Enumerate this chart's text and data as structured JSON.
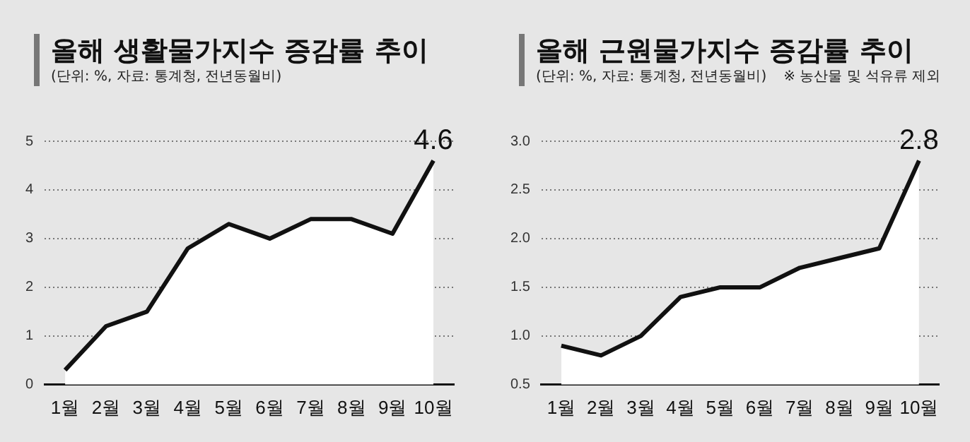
{
  "chart_data": [
    {
      "type": "area",
      "title": "올해 생활물가지수 증감률 추이",
      "subtitle": "(단위: %, 자료: 통계청, 전년동월비)",
      "categories": [
        "1월",
        "2월",
        "3월",
        "4월",
        "5월",
        "6월",
        "7월",
        "8월",
        "9월",
        "10월"
      ],
      "series": [
        {
          "color": "#111111",
          "values": [
            0.3,
            1.2,
            1.5,
            2.8,
            3.3,
            3.0,
            3.4,
            3.4,
            3.1,
            4.6
          ],
          "value_labels": [
            null,
            null,
            null,
            null,
            null,
            null,
            null,
            null,
            null,
            "4.6"
          ]
        }
      ],
      "ylim": [
        0,
        5
      ],
      "yticks": [
        0,
        1,
        2,
        3,
        4,
        5
      ],
      "grid": "y",
      "marker": "none"
    },
    {
      "type": "area",
      "title": "올해 근원물가지수 증감률 추이",
      "subtitle": "(단위: %, 자료: 통계청, 전년동월비)",
      "annotations": [
        "※ 농산물 및 석유류 제외"
      ],
      "categories": [
        "1월",
        "2월",
        "3월",
        "4월",
        "5월",
        "6월",
        "7월",
        "8월",
        "9월",
        "10월"
      ],
      "series": [
        {
          "color": "#111111",
          "values": [
            0.9,
            0.8,
            1.0,
            1.4,
            1.5,
            1.5,
            1.7,
            1.8,
            1.9,
            2.8
          ],
          "value_labels": [
            null,
            null,
            null,
            null,
            null,
            null,
            null,
            null,
            null,
            "2.8"
          ]
        }
      ],
      "ylim": [
        0.5,
        3.0
      ],
      "yticks": [
        {
          "value": 0.5,
          "label": "0.5"
        },
        {
          "value": 1,
          "label": "1.0"
        },
        {
          "value": 1.5,
          "label": "1.5"
        },
        {
          "value": 2,
          "label": "2.0"
        },
        {
          "value": 2.5,
          "label": "2.5"
        },
        {
          "value": 3,
          "label": "3.0"
        }
      ],
      "grid": "y",
      "marker": "none"
    }
  ]
}
